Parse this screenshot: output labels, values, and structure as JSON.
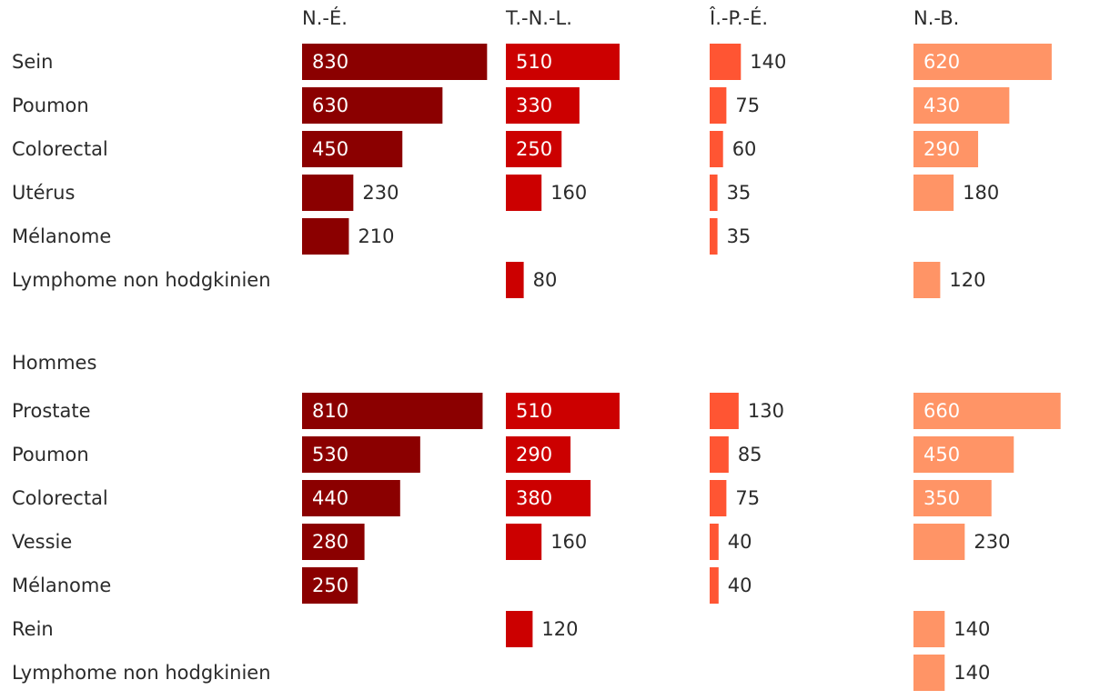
{
  "chart_data": {
    "type": "bar",
    "columns": [
      {
        "name": "N.-É.",
        "color": "#8b0000"
      },
      {
        "name": "T.-N.-L.",
        "color": "#cc0000"
      },
      {
        "name": "Î.-P.-É.",
        "color": "#ff5533"
      },
      {
        "name": "N.-B.",
        "color": "#ff9466"
      }
    ],
    "groups": [
      {
        "title": "",
        "rows": [
          {
            "label": "Sein",
            "values": [
              830,
              510,
              140,
              620
            ]
          },
          {
            "label": "Poumon",
            "values": [
              630,
              330,
              75,
              430
            ]
          },
          {
            "label": "Colorectal",
            "values": [
              450,
              250,
              60,
              290
            ]
          },
          {
            "label": "Utérus",
            "values": [
              230,
              160,
              35,
              180
            ]
          },
          {
            "label": "Mélanome",
            "values": [
              210,
              null,
              35,
              null
            ]
          },
          {
            "label": "Lymphome non hodgkinien",
            "values": [
              null,
              80,
              null,
              120
            ]
          }
        ]
      },
      {
        "title": "Hommes",
        "rows": [
          {
            "label": "Prostate",
            "values": [
              810,
              510,
              130,
              660
            ]
          },
          {
            "label": "Poumon",
            "values": [
              530,
              290,
              85,
              450
            ]
          },
          {
            "label": "Colorectal",
            "values": [
              440,
              380,
              75,
              350
            ]
          },
          {
            "label": "Vessie",
            "values": [
              280,
              160,
              40,
              230
            ]
          },
          {
            "label": "Mélanome",
            "values": [
              250,
              null,
              40,
              null
            ]
          },
          {
            "label": "Rein",
            "values": [
              null,
              120,
              null,
              140
            ]
          },
          {
            "label": "Lymphome non hodgkinien",
            "values": [
              null,
              null,
              null,
              140
            ]
          }
        ]
      }
    ]
  }
}
